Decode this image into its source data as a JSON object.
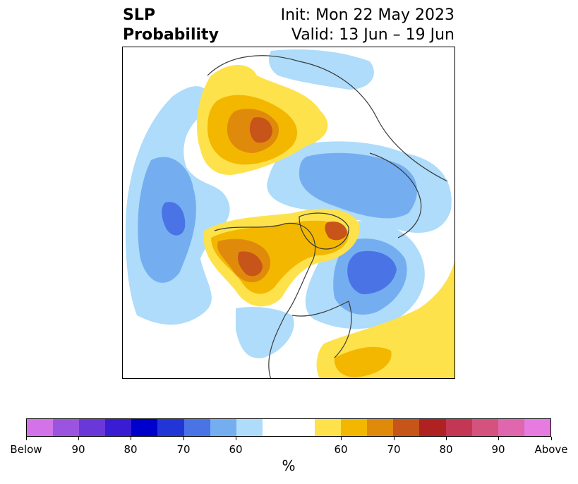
{
  "title": {
    "left_line1": "SLP",
    "left_line2": "Probability",
    "right_line1": "Init: Mon 22 May 2023",
    "right_line2": "Valid: 13 Jun – 19 Jun"
  },
  "colorbar": {
    "label": "%",
    "colors": [
      "#d373e8",
      "#9b54e0",
      "#6a38d8",
      "#3a1cd5",
      "#0000cc",
      "#2236d8",
      "#4a73e6",
      "#75aef0",
      "#aedcfa",
      "#ffffff",
      "#ffffff",
      "#fde24c",
      "#f3b700",
      "#e08a0c",
      "#c75418",
      "#b02222",
      "#c33754",
      "#d5527e",
      "#e066ad",
      "#e67be0"
    ],
    "ticks": [
      "Below",
      "90",
      "80",
      "70",
      "60",
      "60",
      "70",
      "80",
      "90",
      "Above"
    ]
  },
  "map": {
    "projection": "north-polar-stereographic",
    "fill_colors": {
      "below_60": "#aedcfa",
      "below_65": "#75aef0",
      "below_70": "#4a73e6",
      "above_60": "#fde24c",
      "above_65": "#f3b700",
      "above_70": "#e08a0c",
      "above_75": "#c75418",
      "coastline": "#3a3a3a"
    }
  }
}
